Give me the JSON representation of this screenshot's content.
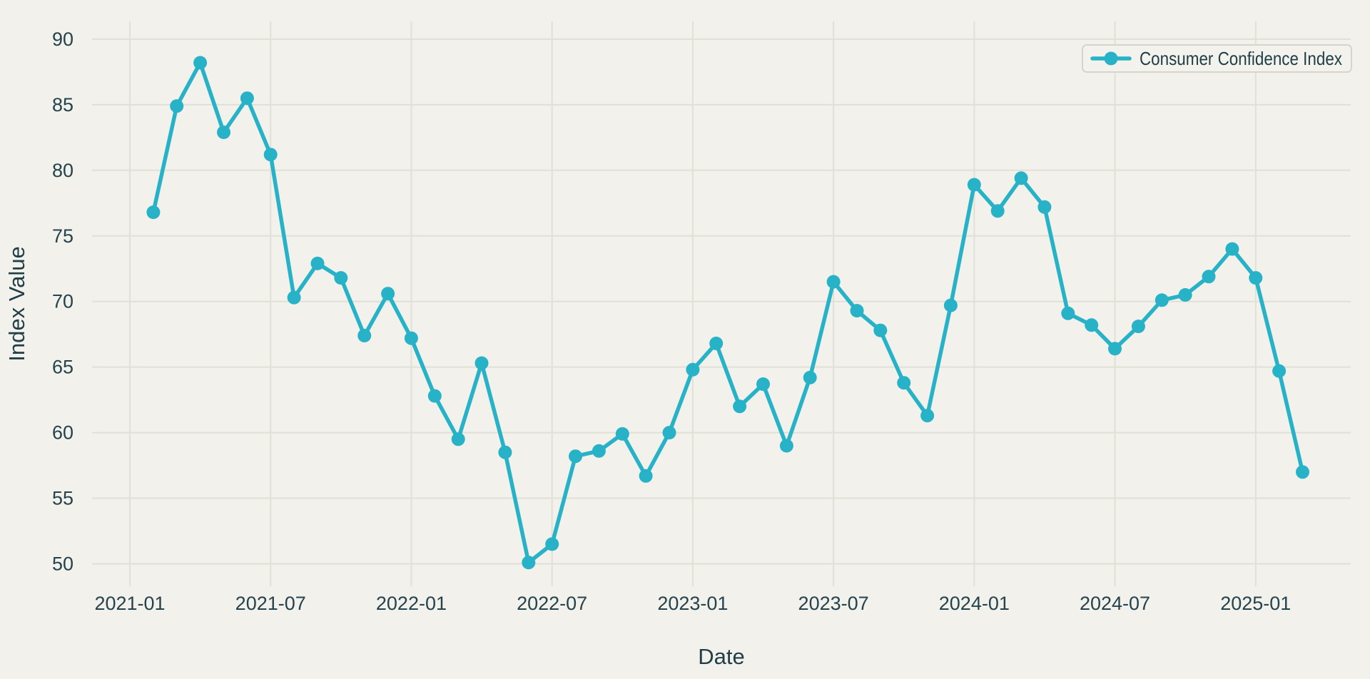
{
  "chart_data": {
    "type": "line",
    "title": "",
    "xlabel": "Date",
    "ylabel": "Index Value",
    "legend": [
      "Consumer Confidence Index"
    ],
    "legend_position": "top-right",
    "grid": true,
    "marker": "circle",
    "x": [
      "2021-02",
      "2021-03",
      "2021-04",
      "2021-05",
      "2021-06",
      "2021-07",
      "2021-08",
      "2021-09",
      "2021-10",
      "2021-11",
      "2021-12",
      "2022-01",
      "2022-02",
      "2022-03",
      "2022-04",
      "2022-05",
      "2022-06",
      "2022-07",
      "2022-08",
      "2022-09",
      "2022-10",
      "2022-11",
      "2022-12",
      "2023-01",
      "2023-02",
      "2023-03",
      "2023-04",
      "2023-05",
      "2023-06",
      "2023-07",
      "2023-08",
      "2023-09",
      "2023-10",
      "2023-11",
      "2023-12",
      "2024-01",
      "2024-02",
      "2024-03",
      "2024-04",
      "2024-05",
      "2024-06",
      "2024-07",
      "2024-08",
      "2024-09",
      "2024-10",
      "2024-11",
      "2024-12",
      "2025-01",
      "2025-02",
      "2025-03"
    ],
    "series": [
      {
        "name": "Consumer Confidence Index",
        "values": [
          76.8,
          84.9,
          88.2,
          82.9,
          85.5,
          81.2,
          70.3,
          72.9,
          71.8,
          67.4,
          70.6,
          67.2,
          62.8,
          59.5,
          65.3,
          58.5,
          50.1,
          51.5,
          58.2,
          58.6,
          59.9,
          56.7,
          60.0,
          64.8,
          66.8,
          62.0,
          63.7,
          59.0,
          64.2,
          71.5,
          69.3,
          67.8,
          63.8,
          61.3,
          69.7,
          78.9,
          76.9,
          79.4,
          77.2,
          69.1,
          68.2,
          66.4,
          68.1,
          70.1,
          70.5,
          71.9,
          74.0,
          71.8,
          64.7,
          57.0
        ]
      }
    ],
    "x_tick_labels": [
      "2021-01",
      "2021-07",
      "2022-01",
      "2022-07",
      "2023-01",
      "2023-07",
      "2024-01",
      "2024-07",
      "2025-01"
    ],
    "y_ticks": [
      50,
      55,
      60,
      65,
      70,
      75,
      80,
      85,
      90
    ],
    "ylim": [
      48.2,
      91.4
    ]
  },
  "colors": {
    "background": "#F2F1EB",
    "line": "#28B2C7",
    "grid": "#E1E0D7",
    "tick_text": "#24434C",
    "axis_text": "#1F3E47",
    "legend_border": "#D6D5CC",
    "legend_bg": "#F3F2EC"
  }
}
